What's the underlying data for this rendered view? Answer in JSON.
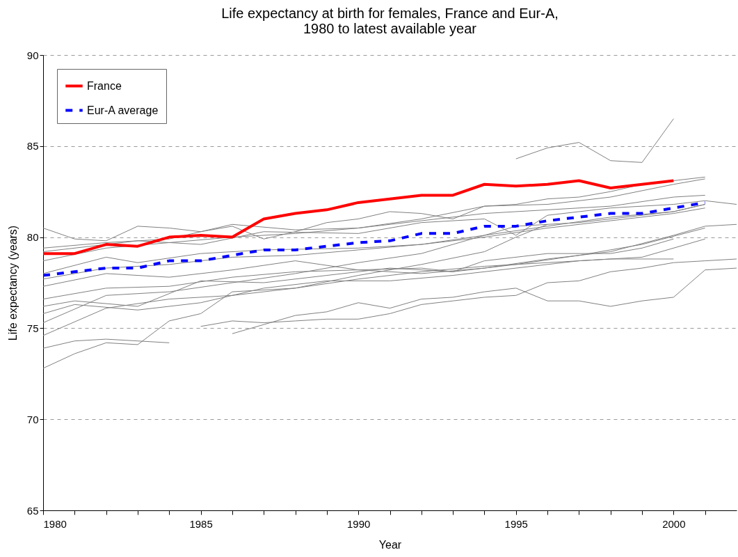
{
  "chart_data": {
    "type": "line",
    "title": "Life expectancy at birth for females, France and Eur-A,\n1980 to latest available year",
    "xlabel": "Year",
    "ylabel": "Life expectancy (years)",
    "x": [
      1980,
      1981,
      1982,
      1983,
      1984,
      1985,
      1986,
      1987,
      1988,
      1989,
      1990,
      1991,
      1992,
      1993,
      1994,
      1995,
      1996,
      1997,
      1998,
      1999,
      2000,
      2001
    ],
    "xlim": [
      1980,
      2002
    ],
    "xticks": [
      1980,
      {
        "value": 1981,
        "label": null
      },
      {
        "value": 1982,
        "label": null
      },
      {
        "value": 1983,
        "label": null
      },
      {
        "value": 1984,
        "label": null
      },
      1985,
      {
        "value": 1986,
        "label": null
      },
      {
        "value": 1987,
        "label": null
      },
      {
        "value": 1988,
        "label": null
      },
      {
        "value": 1989,
        "label": null
      },
      1990,
      {
        "value": 1991,
        "label": null
      },
      {
        "value": 1992,
        "label": null
      },
      {
        "value": 1993,
        "label": null
      },
      {
        "value": 1994,
        "label": null
      },
      1995,
      {
        "value": 1996,
        "label": null
      },
      {
        "value": 1997,
        "label": null
      },
      {
        "value": 1998,
        "label": null
      },
      {
        "value": 1999,
        "label": null
      },
      2000,
      {
        "value": 2001,
        "label": null
      }
    ],
    "ylim": [
      65,
      90
    ],
    "yticks": [
      65,
      70,
      75,
      80,
      85,
      90
    ],
    "grid": "y",
    "legend": "top left",
    "marker": "none",
    "series": [
      {
        "color": "#808080",
        "x": [
          1995,
          1996,
          1997,
          1998,
          1999,
          2000
        ],
        "values": [
          84.3,
          84.9,
          85.2,
          84.2,
          84.1,
          86.5
        ]
      },
      {
        "color": "#808080",
        "x": [
          1980,
          1981,
          1982,
          1983,
          1984,
          1985,
          1986,
          1987,
          1988,
          1989,
          1990,
          1991,
          1992,
          1993,
          1994,
          1995,
          1996,
          1997,
          1998,
          1999,
          2000,
          2001
        ],
        "values": [
          80.5,
          79.9,
          79.8,
          80.6,
          80.5,
          80.3,
          80.6,
          79.9,
          80.3,
          80.8,
          81.0,
          81.4,
          81.3,
          81.0,
          81.7,
          81.8,
          82.1,
          82.2,
          82.5,
          82.9,
          83.1,
          83.3
        ]
      },
      {
        "color": "#808080",
        "x": [
          1980,
          1982,
          1984,
          1986,
          1988,
          1990,
          1992,
          1994,
          1996,
          1998,
          2000,
          2001
        ],
        "values": [
          79.4,
          79.7,
          79.9,
          80.7,
          80.4,
          80.5,
          81.0,
          81.7,
          81.8,
          82.2,
          82.9,
          83.2
        ]
      },
      {
        "color": "#808080",
        "x": [
          1980,
          1983,
          1985,
          1987,
          1990,
          1992,
          1994,
          1995,
          1996,
          1998,
          2000,
          2001,
          2002
        ],
        "values": [
          79.2,
          79.8,
          79.6,
          80.3,
          80.2,
          80.8,
          81.0,
          80.1,
          81.2,
          81.6,
          81.8,
          82.0,
          81.8
        ]
      },
      {
        "color": "#808080",
        "x": [
          1980,
          1982,
          1984,
          1986,
          1988,
          1990,
          1992,
          1994,
          1996,
          1998,
          2000,
          2001
        ],
        "values": [
          78.7,
          79.4,
          79.7,
          80.0,
          80.2,
          80.5,
          80.9,
          81.3,
          81.5,
          81.7,
          82.2,
          82.3
        ]
      },
      {
        "color": "#808080",
        "x": [
          1980,
          1982,
          1983,
          1985,
          1987,
          1990,
          1992,
          1994,
          1996,
          1998,
          2000,
          2001
        ],
        "values": [
          78.0,
          78.9,
          78.6,
          79.1,
          79.3,
          79.4,
          79.6,
          80.1,
          80.6,
          81.1,
          81.4,
          81.8
        ]
      },
      {
        "color": "#808080",
        "x": [
          1980,
          1982,
          1984,
          1986,
          1988,
          1990,
          1992,
          1994,
          1996,
          1998,
          2000,
          2001
        ],
        "values": [
          77.7,
          78.3,
          78.5,
          78.9,
          79.0,
          79.3,
          79.6,
          80.0,
          80.5,
          80.9,
          81.3,
          81.6
        ]
      },
      {
        "color": "#808080",
        "x": [
          1980,
          1982,
          1984,
          1986,
          1988,
          1990,
          1992,
          1993,
          1994,
          1996,
          1998,
          1999,
          2000
        ],
        "values": [
          77.3,
          78.0,
          77.8,
          78.2,
          78.7,
          78.2,
          78.3,
          78.1,
          78.7,
          79.1,
          79.1,
          79.4,
          79.9
        ]
      },
      {
        "color": "#808080",
        "x": [
          1980,
          1982,
          1984,
          1986,
          1988,
          1990,
          1992,
          1994,
          1996,
          1998,
          2000,
          2001,
          2002
        ],
        "values": [
          76.6,
          77.2,
          77.3,
          77.8,
          78.1,
          78.2,
          78.0,
          78.3,
          78.8,
          79.2,
          80.1,
          80.6,
          80.7
        ]
      },
      {
        "color": "#808080",
        "x": [
          1980,
          1982,
          1984,
          1986,
          1988,
          1990,
          1992,
          1993,
          1995,
          1997,
          2000,
          2001
        ],
        "values": [
          75.3,
          76.8,
          77.0,
          77.5,
          78.0,
          78.6,
          79.1,
          79.6,
          80.6,
          80.8,
          81.4,
          81.8
        ]
      },
      {
        "color": "#808080",
        "x": [
          1980,
          1981,
          1983,
          1985,
          1987,
          1989,
          1991,
          1993,
          1995,
          1997,
          1999,
          2001
        ],
        "values": [
          76.2,
          76.5,
          76.2,
          77.6,
          77.5,
          77.9,
          78.3,
          78.1,
          78.5,
          79.0,
          79.6,
          80.5
        ]
      },
      {
        "color": "#808080",
        "x": [
          1980,
          1981,
          1983,
          1985,
          1987,
          1989,
          1991,
          1993,
          1995,
          1997,
          1999,
          2001
        ],
        "values": [
          75.8,
          76.3,
          76.0,
          76.4,
          77.2,
          77.6,
          77.6,
          77.9,
          78.3,
          78.7,
          78.9,
          79.9
        ]
      },
      {
        "color": "#808080",
        "x": [
          1980,
          1982,
          1984,
          1986,
          1988,
          1990,
          1992,
          1994,
          1996,
          1998,
          2000
        ],
        "values": [
          74.6,
          76.1,
          76.6,
          76.8,
          77.2,
          77.7,
          78.1,
          78.4,
          78.6,
          78.8,
          78.8
        ]
      },
      {
        "color": "#808080",
        "x": [
          1980,
          1981,
          1982,
          1983,
          1984
        ],
        "values": [
          73.9,
          74.3,
          74.4,
          74.3,
          74.2
        ]
      },
      {
        "color": "#808080",
        "x": [
          1980,
          1981,
          1982,
          1983,
          1984,
          1985,
          1986,
          1988,
          1990,
          1992,
          1994,
          1995,
          1996
        ],
        "values": [
          72.8,
          73.6,
          74.2,
          74.1,
          75.4,
          75.8,
          77.0,
          77.2,
          77.9,
          78.5,
          79.2,
          80.0,
          80.7
        ]
      },
      {
        "color": "#808080",
        "x": [
          1985,
          1986,
          1987,
          1988,
          1989,
          1990,
          1991,
          1992,
          1993,
          1994,
          1995,
          1996,
          1997,
          1998,
          1999,
          2000,
          2001,
          2002
        ],
        "values": [
          75.1,
          75.4,
          75.3,
          75.4,
          75.5,
          75.5,
          75.8,
          76.3,
          76.5,
          76.7,
          76.8,
          77.5,
          77.6,
          78.1,
          78.3,
          78.6,
          78.7,
          78.8
        ]
      },
      {
        "color": "#808080",
        "x": [
          1986,
          1987,
          1988,
          1989,
          1990,
          1991,
          1992,
          1993,
          1994,
          1995,
          1996,
          1997,
          1998,
          1999,
          2000,
          2001,
          2002
        ],
        "values": [
          74.7,
          75.2,
          75.7,
          75.9,
          76.4,
          76.1,
          76.6,
          76.7,
          77.0,
          77.2,
          76.5,
          76.5,
          76.2,
          76.5,
          76.7,
          78.2,
          78.3
        ]
      },
      {
        "name": "France",
        "color": "#ff0000",
        "line_style": "solid",
        "values": [
          79.1,
          79.1,
          79.6,
          79.5,
          80.0,
          80.1,
          80.0,
          81.0,
          81.3,
          81.5,
          81.9,
          82.1,
          82.3,
          82.3,
          82.9,
          82.8,
          82.9,
          83.1,
          82.7,
          82.9,
          83.1,
          null
        ]
      },
      {
        "name": "Eur-A average",
        "color": "#0000ff",
        "line_style": "dashed",
        "values": [
          77.9,
          78.1,
          78.3,
          78.3,
          78.7,
          78.7,
          79.0,
          79.3,
          79.3,
          79.5,
          79.7,
          79.8,
          80.2,
          80.2,
          80.6,
          80.6,
          80.9,
          81.1,
          81.3,
          81.3,
          81.6,
          81.9
        ]
      }
    ]
  }
}
